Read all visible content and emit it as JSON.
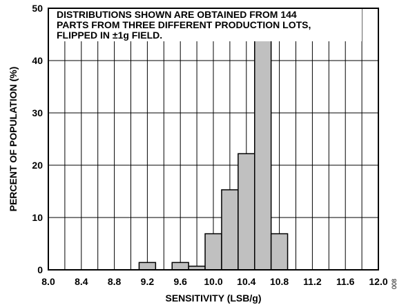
{
  "chart_data": {
    "type": "bar",
    "annotation": "DISTRIBUTIONS SHOWN ARE OBTAINED FROM 144\nPARTS FROM THREE DIFFERENT PRODUCTION LOTS,\nFLIPPED IN ±1g FIELD.",
    "xlabel": "SENSITIVITY (LSB/g)",
    "ylabel": "PERCENT OF POPULATION (%)",
    "xlim": [
      8.0,
      12.0
    ],
    "ylim": [
      0,
      50
    ],
    "x_ticks": [
      "8.0",
      "8.4",
      "8.8",
      "9.2",
      "9.6",
      "10.0",
      "10.4",
      "10.8",
      "11.2",
      "11.6",
      "12.0"
    ],
    "y_ticks": [
      "0",
      "10",
      "20",
      "30",
      "40",
      "50"
    ],
    "bin_width": 0.2,
    "bars": [
      {
        "x_start": 9.1,
        "value": 1.4
      },
      {
        "x_start": 9.5,
        "value": 1.4
      },
      {
        "x_start": 9.7,
        "value": 0.7
      },
      {
        "x_start": 9.9,
        "value": 6.9
      },
      {
        "x_start": 10.1,
        "value": 15.3
      },
      {
        "x_start": 10.3,
        "value": 22.2
      },
      {
        "x_start": 10.5,
        "value": 45.1
      },
      {
        "x_start": 10.7,
        "value": 6.9
      }
    ],
    "bar_color": "#c0c0c0",
    "grid": true
  },
  "figure_id": "008"
}
